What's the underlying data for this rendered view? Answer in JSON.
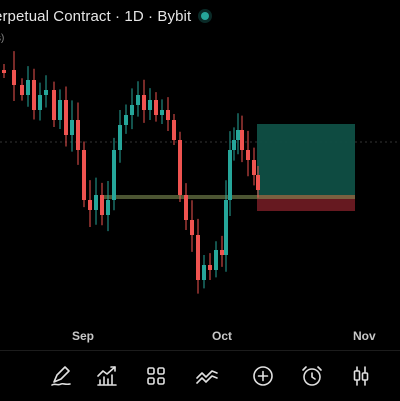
{
  "header": {
    "title": "erpetual Contract · 1D · Bybit",
    "status_color": "#26a69a",
    "sub_label": "s)"
  },
  "x_axis": {
    "labels": [
      "Sep",
      "Oct",
      "Nov"
    ]
  },
  "colors": {
    "up": "#26a69a",
    "down": "#ef5350",
    "profit_zone": "#0f4f44",
    "loss_zone": "#6b1a22",
    "entry_line": "#8a9a5b"
  },
  "toolbar": {
    "icons": [
      "pen-icon",
      "indicators-icon",
      "layout-grid-icon",
      "drawing-lines-icon",
      "add-circle-icon",
      "alarm-clock-icon",
      "candle-type-icon"
    ]
  }
}
